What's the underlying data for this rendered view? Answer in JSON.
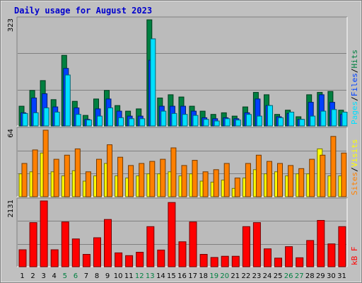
{
  "colors": {
    "frame_bg": "#c0c0c0",
    "plot_bg": "#bbbbbb",
    "title": "#0000cc",
    "hits": "#008040",
    "files": "#0040ff",
    "pages": "#00e0ff",
    "visits": "#ffff00",
    "sites": "#ff8000",
    "kbytes": "#ff0000",
    "weekend_label": "#008040",
    "weekday_label": "#000000"
  },
  "chart_data": {
    "type": "bar",
    "title": "Daily usage for August 2023",
    "categories": [
      "1",
      "2",
      "3",
      "4",
      "5",
      "6",
      "7",
      "8",
      "9",
      "10",
      "11",
      "12",
      "13",
      "14",
      "15",
      "16",
      "17",
      "18",
      "19",
      "20",
      "21",
      "22",
      "23",
      "24",
      "25",
      "26",
      "27",
      "28",
      "29",
      "30",
      "31"
    ],
    "weekend_days": [
      "5",
      "6",
      "12",
      "13",
      "19",
      "20",
      "26",
      "27"
    ],
    "panels": [
      {
        "name": "pages_files_hits",
        "ymax_label": "323",
        "ylim": [
          0,
          323
        ],
        "legend": [
          "Pages",
          "/",
          "Files",
          "/",
          "Hits"
        ],
        "series": [
          {
            "name": "Hits",
            "values": [
              60,
              108,
              138,
              80,
              215,
              75,
              32,
              82,
              108,
              62,
              45,
              52,
              323,
              85,
              95,
              88,
              60,
              45,
              35,
              40,
              30,
              58,
              102,
              95,
              35,
              48,
              28,
              95,
              102,
              105,
              48
            ]
          },
          {
            "name": "Files",
            "values": [
              40,
              85,
              98,
              58,
              175,
              55,
              20,
              52,
              82,
              45,
              30,
              30,
              200,
              60,
              60,
              60,
              45,
              25,
              22,
              25,
              22,
              40,
              82,
              62,
              28,
              38,
              20,
              72,
              95,
              72,
              35
            ]
          },
          {
            "name": "Pages",
            "values": [
              38,
              40,
              55,
              42,
              155,
              35,
              18,
              30,
              55,
              25,
              22,
              22,
              265,
              45,
              38,
              35,
              32,
              20,
              15,
              22,
              18,
              35,
              30,
              62,
              25,
              42,
              20,
              30,
              45,
              50,
              42
            ]
          }
        ]
      },
      {
        "name": "sites_visits",
        "ymax_label": "64",
        "ylim": [
          0,
          64
        ],
        "legend": [
          "Sites",
          "/",
          "Visits"
        ],
        "series": [
          {
            "name": "Visits",
            "values": [
              22,
              24,
              42,
              24,
              20,
              25,
              15,
              20,
              32,
              20,
              18,
              20,
              22,
              22,
              24,
              20,
              22,
              15,
              14,
              16,
              8,
              18,
              26,
              22,
              24,
              20,
              22,
              22,
              46,
              20,
              20
            ]
          },
          {
            "name": "Sites",
            "values": [
              32,
              45,
              64,
              36,
              40,
              46,
              24,
              36,
              50,
              38,
              30,
              32,
              34,
              36,
              47,
              30,
              35,
              24,
              26,
              32,
              18,
              32,
              40,
              34,
              32,
              30,
              27,
              36,
              40,
              58,
              42
            ]
          }
        ]
      },
      {
        "name": "kbytes",
        "ymax_label": "2131",
        "ylim": [
          0,
          2131
        ],
        "legend": [
          "kB",
          "F"
        ],
        "series": [
          {
            "name": "kB F",
            "values": [
              550,
              1430,
              2131,
              550,
              1450,
              900,
              400,
              940,
              1530,
              450,
              360,
              470,
              1300,
              540,
              2080,
              810,
              1450,
              400,
              300,
              340,
              340,
              1300,
              1430,
              580,
              280,
              650,
              290,
              850,
              1500,
              740,
              1300
            ]
          }
        ]
      }
    ]
  }
}
